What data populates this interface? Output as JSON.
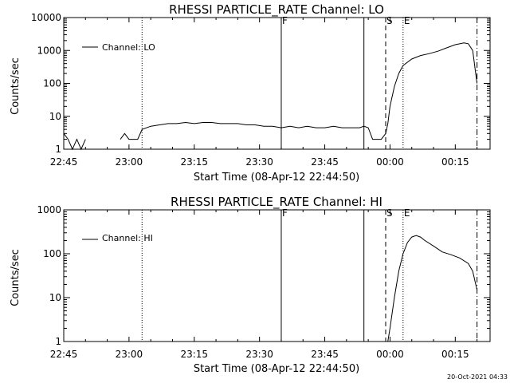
{
  "footer_timestamp": "20-Oct-2021 04:33",
  "chart_data": [
    {
      "type": "line",
      "title": "RHESSI PARTICLE_RATE Channel: LO",
      "xlabel": "Start Time (08-Apr-12 22:44:50)",
      "ylabel": "Counts/sec",
      "yscale": "log",
      "ylim": [
        1,
        10000
      ],
      "xlim": [
        "22:45",
        "00:23"
      ],
      "xtick_labels": [
        "22:45",
        "23:00",
        "23:15",
        "23:30",
        "23:45",
        "00:00",
        "00:15"
      ],
      "ytick_labels": [
        "1",
        "10",
        "100",
        "1000",
        "10000"
      ],
      "legend": {
        "label": "Channel: LO",
        "position": "top-left"
      },
      "vertical_markers": [
        {
          "label": "",
          "time": "23:03",
          "style": "dotted"
        },
        {
          "label": "F",
          "time": "23:35",
          "style": "solid"
        },
        {
          "label": "",
          "time": "23:54",
          "style": "solid"
        },
        {
          "label": "S",
          "time": "23:59",
          "style": "dashed"
        },
        {
          "label": "E",
          "time": "00:03",
          "style": "dotted"
        },
        {
          "label": "",
          "time": "00:20",
          "style": "dash-dot"
        }
      ],
      "series": [
        {
          "name": "Channel: LO",
          "segments": [
            {
              "x": [
                "22:45",
                "22:46",
                "22:47",
                "22:48",
                "22:49",
                "22:50"
              ],
              "y": [
                3,
                2,
                1,
                2,
                1,
                2
              ]
            },
            {
              "x": [
                "22:58",
                "22:59",
                "23:00",
                "23:01",
                "23:02",
                "23:03",
                "23:05",
                "23:07",
                "23:09",
                "23:11",
                "23:13",
                "23:15",
                "23:17",
                "23:19",
                "23:21",
                "23:23",
                "23:25",
                "23:27",
                "23:29",
                "23:31",
                "23:33",
                "23:35",
                "23:37",
                "23:39",
                "23:41",
                "23:43",
                "23:45",
                "23:47",
                "23:49",
                "23:51",
                "23:53",
                "23:54",
                "23:55",
                "23:56",
                "23:57",
                "23:58",
                "23:59",
                "23:59:30",
                "00:00",
                "00:01",
                "00:02",
                "00:03",
                "00:05",
                "00:07",
                "00:09",
                "00:11",
                "00:13",
                "00:15",
                "00:17",
                "00:18",
                "00:19",
                "00:20"
              ],
              "y": [
                2,
                3,
                2,
                2,
                2,
                4,
                5,
                5.5,
                6,
                6,
                6.5,
                6,
                6.5,
                6.5,
                6,
                6,
                6,
                5.5,
                5.5,
                5,
                5,
                4.5,
                5,
                4.5,
                5,
                4.5,
                4.5,
                5,
                4.5,
                4.5,
                4.5,
                5,
                4.5,
                2,
                2,
                2,
                3,
                6,
                20,
                80,
                200,
                350,
                550,
                700,
                800,
                950,
                1200,
                1500,
                1700,
                1600,
                1000,
                100
              ]
            }
          ]
        }
      ]
    },
    {
      "type": "line",
      "title": "RHESSI PARTICLE_RATE Channel: HI",
      "xlabel": "Start Time (08-Apr-12 22:44:50)",
      "ylabel": "Counts/sec",
      "yscale": "log",
      "ylim": [
        1,
        1000
      ],
      "xlim": [
        "22:45",
        "00:23"
      ],
      "xtick_labels": [
        "22:45",
        "23:00",
        "23:15",
        "23:30",
        "23:45",
        "00:00",
        "00:15"
      ],
      "ytick_labels": [
        "1",
        "10",
        "100",
        "1000"
      ],
      "legend": {
        "label": "Channel: HI",
        "position": "top-left"
      },
      "vertical_markers": [
        {
          "label": "",
          "time": "23:03",
          "style": "dotted"
        },
        {
          "label": "F",
          "time": "23:35",
          "style": "solid"
        },
        {
          "label": "",
          "time": "23:54",
          "style": "solid"
        },
        {
          "label": "S",
          "time": "23:59",
          "style": "dashed"
        },
        {
          "label": "E",
          "time": "00:03",
          "style": "dotted"
        },
        {
          "label": "",
          "time": "00:20",
          "style": "dash-dot"
        }
      ],
      "series": [
        {
          "name": "Channel: HI",
          "segments": [
            {
              "x": [
                "23:59:30",
                "00:00",
                "00:01",
                "00:02",
                "00:03",
                "00:04",
                "00:05",
                "00:06",
                "00:07",
                "00:08",
                "00:10",
                "00:12",
                "00:14",
                "00:16",
                "00:18",
                "00:19",
                "00:20"
              ],
              "y": [
                1,
                2,
                10,
                40,
                100,
                180,
                240,
                260,
                240,
                200,
                150,
                110,
                95,
                80,
                60,
                40,
                15
              ]
            }
          ]
        }
      ]
    }
  ]
}
